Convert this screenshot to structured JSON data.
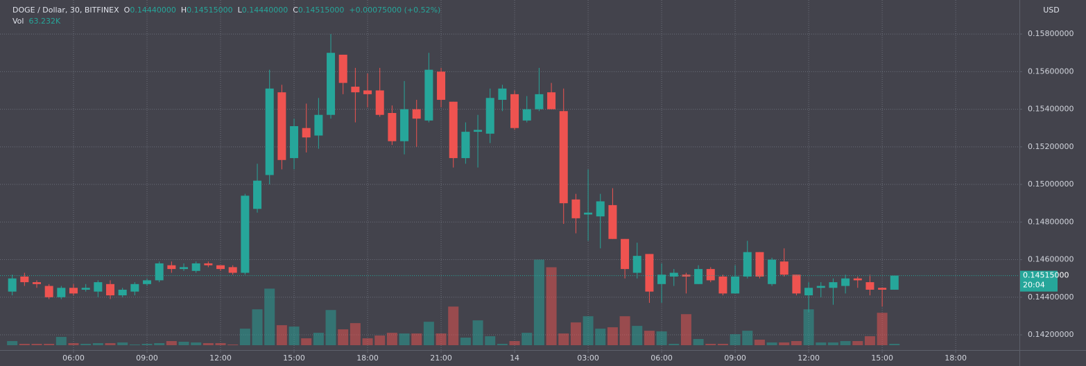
{
  "header": {
    "symbol": "DOGE / Dollar, 30, BITFINEX",
    "o_key": "O",
    "o_value": "0.14440000",
    "h_key": "H",
    "h_value": "0.14515000",
    "l_key": "L",
    "l_value": "0.14440000",
    "c_key": "C",
    "c_value": "0.14515000",
    "change": "+0.00075000 (+0.52%)",
    "vol_key": "Vol",
    "vol_value": "63.232K"
  },
  "currency": "USD",
  "last_price_label": "0.14515000",
  "countdown": "20:04",
  "chart_data": {
    "type": "candlestick",
    "up_color": "#26a69a",
    "down_color": "#ef5350",
    "grid": true,
    "categories": [
      "03:30",
      "04:00",
      "04:30",
      "05:00",
      "05:30",
      "06:00",
      "06:30",
      "07:00",
      "07:30",
      "08:00",
      "08:30",
      "09:00",
      "09:30",
      "10:00",
      "10:30",
      "11:00",
      "11:30",
      "12:00",
      "12:30",
      "13:00",
      "13:30",
      "14:00",
      "14:30",
      "15:00",
      "15:30",
      "16:00",
      "16:30",
      "17:00",
      "17:30",
      "18:00",
      "18:30",
      "19:00",
      "19:30",
      "20:00",
      "20:30",
      "21:00",
      "21:30",
      "22:00",
      "22:30",
      "23:00",
      "23:30",
      "00:00",
      "00:30",
      "01:00",
      "01:30",
      "02:00",
      "02:30",
      "03:00",
      "03:30",
      "04:00",
      "04:30",
      "05:00",
      "05:30",
      "06:00",
      "06:30",
      "07:00",
      "07:30",
      "08:00",
      "08:30",
      "09:00",
      "09:30",
      "10:00",
      "10:30",
      "11:00",
      "11:30",
      "12:00",
      "12:30",
      "13:00",
      "13:30",
      "14:00",
      "14:30",
      "15:00",
      "15:30"
    ],
    "open": [
      0.1443,
      0.1451,
      0.1448,
      0.1446,
      0.144,
      0.1445,
      0.1444,
      0.1443,
      0.1447,
      0.1441,
      0.1443,
      0.1447,
      0.1449,
      0.1457,
      0.1455,
      0.1454,
      0.1458,
      0.1457,
      0.1456,
      0.1453,
      0.1487,
      0.1505,
      0.1549,
      0.1514,
      0.153,
      0.1526,
      0.1537,
      0.1569,
      0.1552,
      0.155,
      0.155,
      0.1538,
      0.1523,
      0.154,
      0.1534,
      0.156,
      0.1544,
      0.1514,
      0.1528,
      0.1527,
      0.1545,
      0.1548,
      0.1534,
      0.154,
      0.1549,
      0.1539,
      0.1492,
      0.1484,
      0.1483,
      0.1489,
      0.1471,
      0.1453,
      0.1463,
      0.1447,
      0.1451,
      0.1452,
      0.1447,
      0.1455,
      0.1451,
      0.1442,
      0.1451,
      0.1464,
      0.1447,
      0.1459,
      0.1452,
      0.1441,
      0.1445,
      0.1445,
      0.1446,
      0.145,
      0.1448,
      0.1445,
      0.1444
    ],
    "high": [
      0.1452,
      0.1453,
      0.1449,
      0.1447,
      0.1446,
      0.1447,
      0.1447,
      0.1449,
      0.1449,
      0.1445,
      0.1448,
      0.145,
      0.1459,
      0.1459,
      0.1458,
      0.1459,
      0.1459,
      0.1457,
      0.1457,
      0.1495,
      0.1511,
      0.1561,
      0.1553,
      0.1535,
      0.1543,
      0.1546,
      0.158,
      0.1569,
      0.1562,
      0.1559,
      0.1562,
      0.1542,
      0.1555,
      0.1545,
      0.157,
      0.1562,
      0.1544,
      0.1533,
      0.1537,
      0.1551,
      0.1553,
      0.155,
      0.1547,
      0.1562,
      0.1554,
      0.1551,
      0.1495,
      0.1508,
      0.1495,
      0.1498,
      0.1471,
      0.1469,
      0.1463,
      0.1458,
      0.1455,
      0.1453,
      0.1457,
      0.1456,
      0.1452,
      0.1457,
      0.147,
      0.1464,
      0.1461,
      0.1466,
      0.1452,
      0.1448,
      0.1448,
      0.145,
      0.1452,
      0.1451,
      0.1452,
      0.1445,
      0.14515
    ],
    "low": [
      0.1441,
      0.1446,
      0.1445,
      0.1439,
      0.1439,
      0.1441,
      0.1443,
      0.144,
      0.1439,
      0.144,
      0.1441,
      0.1446,
      0.1448,
      0.1453,
      0.1454,
      0.1453,
      0.1456,
      0.1454,
      0.1452,
      0.1452,
      0.1485,
      0.15,
      0.1508,
      0.1508,
      0.1517,
      0.1519,
      0.1535,
      0.1548,
      0.1533,
      0.1541,
      0.1536,
      0.1521,
      0.1516,
      0.152,
      0.1533,
      0.1541,
      0.1509,
      0.1511,
      0.1509,
      0.1522,
      0.1539,
      0.1529,
      0.1533,
      0.1539,
      0.154,
      0.1479,
      0.1474,
      0.147,
      0.1466,
      0.1471,
      0.145,
      0.145,
      0.1437,
      0.1437,
      0.1446,
      0.1442,
      0.1447,
      0.1448,
      0.1441,
      0.1442,
      0.145,
      0.145,
      0.1446,
      0.1451,
      0.1441,
      0.1432,
      0.144,
      0.1436,
      0.1442,
      0.1445,
      0.1441,
      0.1435,
      0.1444
    ],
    "close": [
      0.145,
      0.1448,
      0.1447,
      0.144,
      0.1445,
      0.1442,
      0.1445,
      0.1448,
      0.1441,
      0.1444,
      0.1447,
      0.1449,
      0.1458,
      0.1455,
      0.1456,
      0.1458,
      0.1457,
      0.1455,
      0.1453,
      0.1494,
      0.1502,
      0.1551,
      0.1513,
      0.1531,
      0.1525,
      0.1537,
      0.157,
      0.1554,
      0.1549,
      0.1548,
      0.1537,
      0.1523,
      0.154,
      0.1535,
      0.1561,
      0.1545,
      0.1514,
      0.1528,
      0.1529,
      0.1546,
      0.1551,
      0.153,
      0.154,
      0.1548,
      0.154,
      0.149,
      0.1482,
      0.1485,
      0.1491,
      0.1471,
      0.1455,
      0.1462,
      0.1443,
      0.1452,
      0.1453,
      0.1451,
      0.1455,
      0.1449,
      0.1442,
      0.1451,
      0.1464,
      0.1451,
      0.146,
      0.1452,
      0.1442,
      0.1445,
      0.1446,
      0.1448,
      0.145,
      0.1449,
      0.1444,
      0.1444,
      0.14515
    ],
    "volume": [
      189600,
      63200,
      63200,
      63200,
      379200,
      94800,
      63200,
      94800,
      94800,
      126400,
      31600,
      63200,
      94800,
      189600,
      158000,
      126400,
      94800,
      94800,
      31600,
      758400,
      1643200,
      2591200,
      916400,
      853200,
      316000,
      568800,
      1611600,
      726800,
      1011200,
      316000,
      442400,
      568800,
      537200,
      537200,
      1074400,
      537200,
      1769600,
      347600,
      1137600,
      410800,
      63200,
      189600,
      568800,
      3918400,
      3570800,
      537200,
      1042800,
      1327200,
      758400,
      821600,
      1327200,
      884800,
      663600,
      632000,
      63200,
      1422000,
      284400,
      63200,
      63200,
      505600,
      663600,
      252800,
      126400,
      126400,
      189600,
      1643200,
      126400,
      126400,
      189600,
      189600,
      410800,
      1485200,
      63232
    ],
    "volume_lim": [
      0,
      4000000
    ],
    "xlim": [
      -1,
      82.2
    ],
    "xticks": [
      {
        "value": 5,
        "label": "06:00"
      },
      {
        "value": 11,
        "label": "09:00"
      },
      {
        "value": 17,
        "label": "12:00"
      },
      {
        "value": 23,
        "label": "15:00"
      },
      {
        "value": 29,
        "label": "18:00"
      },
      {
        "value": 35,
        "label": "21:00"
      },
      {
        "value": 41,
        "label": "14"
      },
      {
        "value": 47,
        "label": "03:00"
      },
      {
        "value": 53,
        "label": "06:00"
      },
      {
        "value": 59,
        "label": "09:00"
      },
      {
        "value": 65,
        "label": "12:00"
      },
      {
        "value": 71,
        "label": "15:00"
      },
      {
        "value": 77,
        "label": "18:00"
      }
    ],
    "ylim": [
      0.14119,
      0.15981
    ],
    "yticks": [
      {
        "value": 0.142,
        "label": "0.14200000"
      },
      {
        "value": 0.144,
        "label": "0.14400000"
      },
      {
        "value": 0.146,
        "label": "0.14600000"
      },
      {
        "value": 0.148,
        "label": "0.14800000"
      },
      {
        "value": 0.15,
        "label": "0.15000000"
      },
      {
        "value": 0.152,
        "label": "0.15200000"
      },
      {
        "value": 0.154,
        "label": "0.15400000"
      },
      {
        "value": 0.156,
        "label": "0.15600000"
      },
      {
        "value": 0.158,
        "label": "0.15800000"
      }
    ]
  }
}
